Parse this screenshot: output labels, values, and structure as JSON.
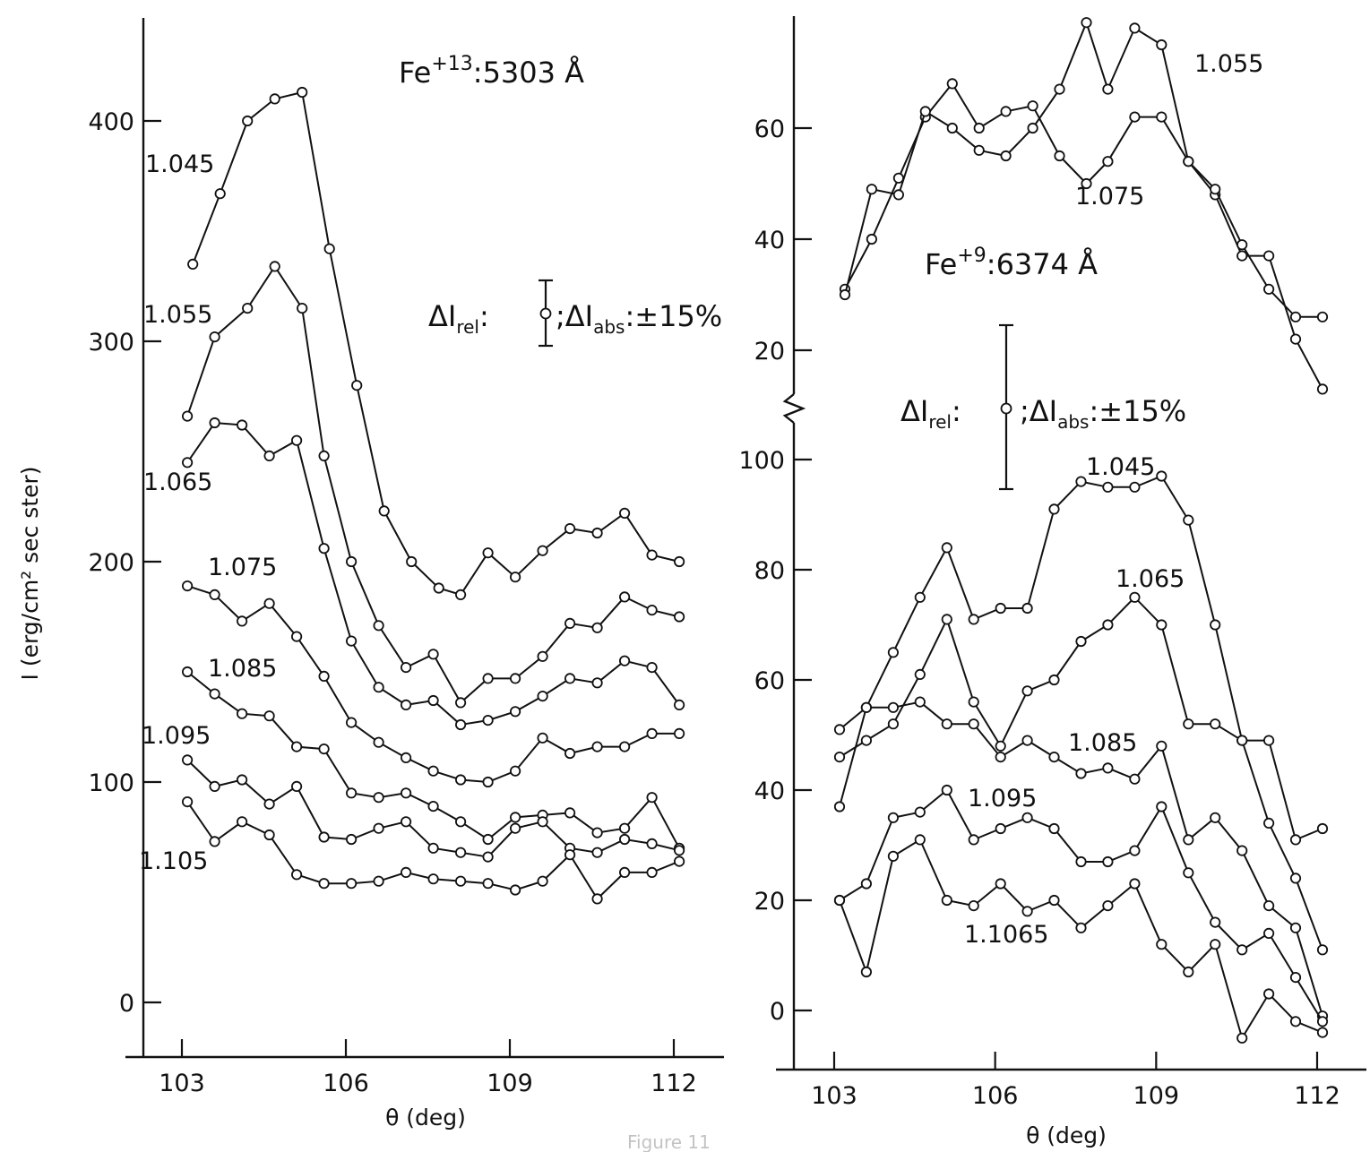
{
  "figure": {
    "caption_partial": "Figure 11"
  },
  "chart_data": [
    {
      "type": "line",
      "title_parts": {
        "base": "Fe",
        "superscript": "+13",
        "rest": ":5303 Å"
      },
      "xlabel": "θ (deg)",
      "ylabel": "I (erg/cm² sec ster)",
      "xlim": [
        102.2,
        113.0
      ],
      "ylim": [
        -20,
        450
      ],
      "x_ticks": [
        103,
        106,
        109,
        112
      ],
      "y_ticks": [
        0,
        100,
        200,
        300,
        400
      ],
      "annotation": {
        "a": "ΔI",
        "a_sub": "rel",
        "b": ";ΔI",
        "b_sub": "abs",
        "c": ":±15%"
      },
      "series": [
        {
          "name": "1.045",
          "x": [
            103.2,
            103.7,
            104.2,
            104.7,
            105.2,
            105.7,
            106.2,
            106.7,
            107.2,
            107.7,
            108.1,
            108.6,
            109.1,
            109.6,
            110.1,
            110.6,
            111.1,
            111.6,
            112.1
          ],
          "y": [
            335,
            367,
            400,
            410,
            413,
            342,
            280,
            223,
            200,
            188,
            185,
            204,
            193,
            205,
            215,
            213,
            222,
            203,
            200
          ]
        },
        {
          "name": "1.055",
          "x": [
            103.1,
            103.6,
            104.2,
            104.7,
            105.2,
            105.6,
            106.1,
            106.6,
            107.1,
            107.6,
            108.1,
            108.6,
            109.1,
            109.6,
            110.1,
            110.6,
            111.1,
            111.6,
            112.1
          ],
          "y": [
            266,
            302,
            315,
            334,
            315,
            248,
            200,
            171,
            152,
            158,
            136,
            147,
            147,
            157,
            172,
            170,
            184,
            178,
            175
          ]
        },
        {
          "name": "1.065",
          "x": [
            103.1,
            103.6,
            104.1,
            104.6,
            105.1,
            105.6,
            106.1,
            106.6,
            107.1,
            107.6,
            108.1,
            108.6,
            109.1,
            109.6,
            110.1,
            110.6,
            111.1,
            111.6,
            112.1
          ],
          "y": [
            245,
            263,
            262,
            248,
            255,
            206,
            164,
            143,
            135,
            137,
            126,
            128,
            132,
            139,
            147,
            145,
            155,
            152,
            135
          ]
        },
        {
          "name": "1.075",
          "x": [
            103.1,
            103.6,
            104.1,
            104.6,
            105.1,
            105.6,
            106.1,
            106.6,
            107.1,
            107.6,
            108.1,
            108.6,
            109.1,
            109.6,
            110.1,
            110.6,
            111.1,
            111.6,
            112.1
          ],
          "y": [
            189,
            185,
            173,
            181,
            166,
            148,
            127,
            118,
            111,
            105,
            101,
            100,
            105,
            120,
            113,
            116,
            116,
            122,
            122
          ]
        },
        {
          "name": "1.085",
          "x": [
            103.1,
            103.6,
            104.1,
            104.6,
            105.1,
            105.6,
            106.1,
            106.6,
            107.1,
            107.6,
            108.1,
            108.6,
            109.1,
            109.6,
            110.1,
            110.6,
            111.1,
            111.6,
            112.1
          ],
          "y": [
            150,
            140,
            131,
            130,
            116,
            115,
            95,
            93,
            95,
            89,
            82,
            74,
            84,
            85,
            86,
            77,
            79,
            93,
            70
          ]
        },
        {
          "name": "1.095",
          "x": [
            103.1,
            103.6,
            104.1,
            104.6,
            105.1,
            105.6,
            106.1,
            106.6,
            107.1,
            107.6,
            108.1,
            108.6,
            109.1,
            109.6,
            110.1,
            110.6,
            111.1,
            111.6,
            112.1
          ],
          "y": [
            110,
            98,
            101,
            90,
            98,
            75,
            74,
            79,
            82,
            70,
            68,
            66,
            79,
            82,
            70,
            68,
            74,
            72,
            69
          ]
        },
        {
          "name": "1.105",
          "x": [
            103.1,
            103.6,
            104.1,
            104.6,
            105.1,
            105.6,
            106.1,
            106.6,
            107.1,
            107.6,
            108.1,
            108.6,
            109.1,
            109.6,
            110.1,
            110.6,
            111.1,
            111.6,
            112.1
          ],
          "y": [
            91,
            73,
            82,
            76,
            58,
            54,
            54,
            55,
            59,
            56,
            55,
            54,
            51,
            55,
            67,
            47,
            59,
            59,
            64
          ]
        }
      ]
    },
    {
      "type": "line",
      "title_parts": {
        "base": "Fe",
        "superscript": "+9",
        "rest": ":6374 Å"
      },
      "xlabel": "θ (deg)",
      "ylabel": "",
      "xlim": [
        102.3,
        113.0
      ],
      "broken_axis": true,
      "x_ticks": [
        103,
        106,
        109,
        112
      ],
      "upper_y_ticks": [
        20,
        40,
        60
      ],
      "upper_ylim": [
        10,
        78
      ],
      "lower_y_ticks": [
        0,
        20,
        40,
        60,
        80,
        100
      ],
      "lower_ylim": [
        -12,
        108
      ],
      "annotation": {
        "a": "ΔI",
        "a_sub": "rel",
        "b": ";ΔI",
        "b_sub": "abs",
        "c": ":±15%"
      },
      "upper_series": [
        {
          "name": "1.055",
          "x": [
            103.2,
            103.7,
            104.2,
            104.7,
            105.2,
            105.7,
            106.2,
            106.7,
            107.2,
            107.7,
            108.1,
            108.6,
            109.1,
            109.6,
            110.1,
            110.6,
            111.1,
            111.6,
            112.1
          ],
          "y": [
            31,
            40,
            51,
            62,
            68,
            60,
            63,
            64,
            55,
            50,
            54,
            62,
            62,
            54,
            48,
            37,
            37,
            22,
            13
          ]
        },
        {
          "name": "1.075",
          "x": [
            103.2,
            103.7,
            104.2,
            104.7,
            105.2,
            105.7,
            106.2,
            106.7,
            107.2,
            107.7,
            108.1,
            108.6,
            109.1,
            109.6,
            110.1,
            110.6,
            111.1,
            111.6,
            112.1
          ],
          "y": [
            30,
            49,
            48,
            63,
            60,
            56,
            55,
            60,
            67,
            79,
            67,
            78,
            75,
            54,
            49,
            39,
            31,
            26,
            26
          ]
        }
      ],
      "lower_series": [
        {
          "name": "1.045",
          "x": [
            103.1,
            103.6,
            104.1,
            104.6,
            105.1,
            105.6,
            106.1,
            106.6,
            107.1,
            107.6,
            108.1,
            108.6,
            109.1,
            109.6,
            110.1,
            110.6,
            111.1,
            111.6,
            112.1
          ],
          "y": [
            51,
            55,
            65,
            75,
            84,
            71,
            73,
            73,
            91,
            96,
            95,
            95,
            97,
            89,
            70,
            49,
            49,
            31,
            33
          ]
        },
        {
          "name": "1.065",
          "x": [
            103.1,
            103.6,
            104.1,
            104.6,
            105.1,
            105.6,
            106.1,
            106.6,
            107.1,
            107.6,
            108.1,
            108.6,
            109.1,
            109.6,
            110.1,
            110.6,
            111.1,
            111.6,
            112.1
          ],
          "y": [
            46,
            49,
            52,
            61,
            71,
            56,
            48,
            58,
            60,
            67,
            70,
            75,
            70,
            52,
            52,
            49,
            34,
            24,
            11
          ]
        },
        {
          "name": "1.085",
          "x": [
            103.1,
            103.6,
            104.1,
            104.6,
            105.1,
            105.6,
            106.1,
            106.6,
            107.1,
            107.6,
            108.1,
            108.6,
            109.1,
            109.6,
            110.1,
            110.6,
            111.1,
            111.6,
            112.1
          ],
          "y": [
            37,
            55,
            55,
            56,
            52,
            52,
            46,
            49,
            46,
            43,
            44,
            42,
            48,
            31,
            35,
            29,
            19,
            15,
            -1
          ]
        },
        {
          "name": "1.095",
          "x": [
            103.1,
            103.6,
            104.1,
            104.6,
            105.1,
            105.6,
            106.1,
            106.6,
            107.1,
            107.6,
            108.1,
            108.6,
            109.1,
            109.6,
            110.1,
            110.6,
            111.1,
            111.6,
            112.1
          ],
          "y": [
            20,
            23,
            35,
            36,
            40,
            31,
            33,
            35,
            33,
            27,
            27,
            29,
            37,
            25,
            16,
            11,
            14,
            6,
            -2
          ]
        },
        {
          "name": "1.1065",
          "x": [
            103.1,
            103.6,
            104.1,
            104.6,
            105.1,
            105.6,
            106.1,
            106.6,
            107.1,
            107.6,
            108.1,
            108.6,
            109.1,
            109.6,
            110.1,
            110.6,
            111.1,
            111.6,
            112.1
          ],
          "y": [
            20,
            7,
            28,
            31,
            20,
            19,
            23,
            18,
            20,
            15,
            19,
            23,
            12,
            7,
            12,
            -5,
            3,
            -2,
            -4
          ]
        }
      ]
    }
  ]
}
